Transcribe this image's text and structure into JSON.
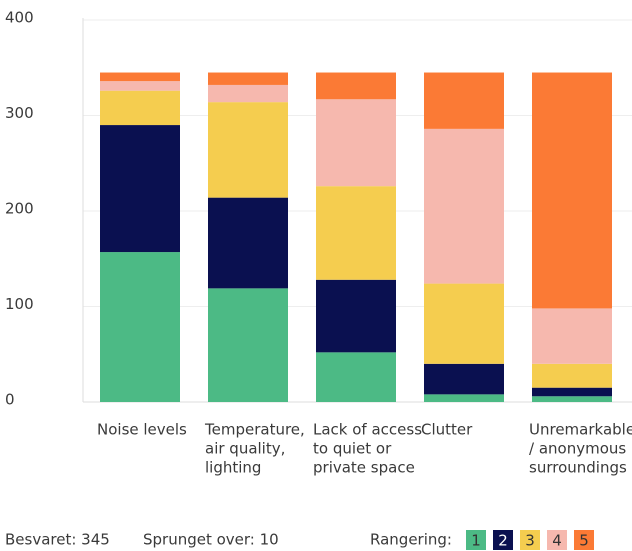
{
  "chart_data": {
    "type": "stacked_bar",
    "categories": [
      [
        "Noise levels"
      ],
      [
        "Temperature,",
        "air quality,",
        "lighting"
      ],
      [
        "Lack of access",
        "to quiet or",
        "private space"
      ],
      [
        "Clutter"
      ],
      [
        "Unremarkable",
        "/ anonymous",
        "surroundings"
      ]
    ],
    "series": [
      {
        "name": "1",
        "color": "#4cba85",
        "values": [
          157,
          119,
          52,
          8,
          6
        ]
      },
      {
        "name": "2",
        "color": "#0a1050",
        "values": [
          133,
          95,
          76,
          32,
          9
        ]
      },
      {
        "name": "3",
        "color": "#f5cd4f",
        "values": [
          36,
          100,
          98,
          84,
          25
        ]
      },
      {
        "name": "4",
        "color": "#f6b8ae",
        "values": [
          10,
          18,
          91,
          162,
          58
        ]
      },
      {
        "name": "5",
        "color": "#fb7a35",
        "values": [
          9,
          13,
          28,
          59,
          247
        ]
      }
    ],
    "ylim": [
      0,
      400
    ],
    "yticks": [
      0,
      100,
      200,
      300,
      400
    ],
    "grid": true,
    "answered": "Besvaret: 345",
    "skipped": "Sprunget over: 10",
    "legend_title": "Rangering:"
  }
}
